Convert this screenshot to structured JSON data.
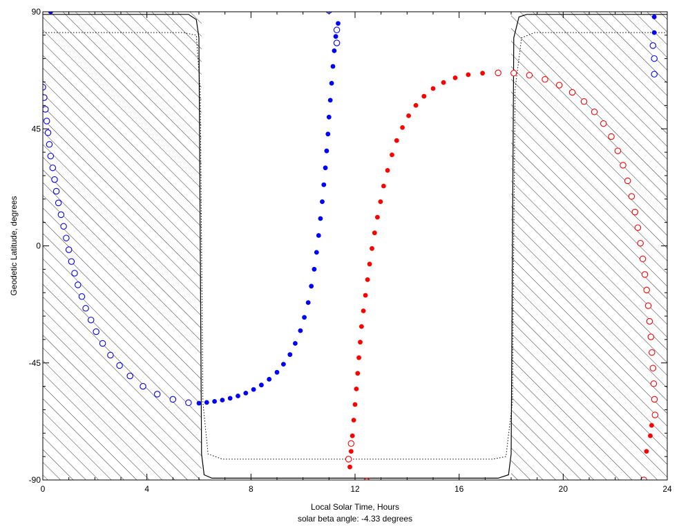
{
  "chart_data": {
    "type": "scatter",
    "title": "",
    "xlabel": "Local Solar Time, Hours",
    "subtitle": "solar beta angle:  -4.33 degrees",
    "ylabel": "Geodetic Latitude, degrees",
    "xlim": [
      0,
      24
    ],
    "ylim": [
      -90,
      90
    ],
    "x_ticks": [
      "0",
      "4",
      "8",
      "12",
      "16",
      "20",
      "24"
    ],
    "y_ticks": [
      "-90",
      "-45",
      "0",
      "45",
      "90"
    ],
    "grid": false,
    "colors": {
      "blue": "#0000ff",
      "red": "#ff0000",
      "axis": "#000000",
      "hatch": "#000000"
    },
    "night_regions": [
      {
        "x_start": 0,
        "x_end": 6.1,
        "label": "night (hatched)"
      },
      {
        "x_start": 18.0,
        "x_end": 24,
        "label": "night (hatched)"
      }
    ],
    "terminator_curves": {
      "solid": [
        [
          0,
          89
        ],
        [
          5.6,
          89
        ],
        [
          5.9,
          87
        ],
        [
          6.0,
          80
        ],
        [
          6.05,
          0
        ],
        [
          6.1,
          -80
        ],
        [
          6.2,
          -88
        ],
        [
          6.5,
          -89.3
        ],
        [
          17.5,
          -89.3
        ],
        [
          17.9,
          -88
        ],
        [
          18.0,
          -80
        ],
        [
          18.05,
          0
        ],
        [
          18.1,
          80
        ],
        [
          18.3,
          88
        ],
        [
          18.6,
          89
        ],
        [
          24,
          89
        ]
      ],
      "dotted": [
        [
          0,
          82
        ],
        [
          5.4,
          82
        ],
        [
          5.9,
          81
        ],
        [
          6.05,
          60
        ],
        [
          6.15,
          -60
        ],
        [
          6.35,
          -80
        ],
        [
          6.9,
          -82
        ],
        [
          17.3,
          -82
        ],
        [
          17.8,
          -81
        ],
        [
          18.05,
          -60
        ],
        [
          18.15,
          60
        ],
        [
          18.4,
          80
        ],
        [
          18.9,
          82
        ],
        [
          24,
          82
        ]
      ]
    },
    "series": [
      {
        "name": "blue-filled",
        "color": "#0000ff",
        "marker": "filled-circle",
        "points": [
          [
            0.3,
            90
          ],
          [
            6.0,
            -60.5
          ],
          [
            6.3,
            -60.2
          ],
          [
            6.6,
            -59.8
          ],
          [
            6.9,
            -59.3
          ],
          [
            7.2,
            -58.6
          ],
          [
            7.5,
            -57.7
          ],
          [
            7.8,
            -56.6
          ],
          [
            8.1,
            -55.2
          ],
          [
            8.4,
            -53.5
          ],
          [
            8.7,
            -51.3
          ],
          [
            9.0,
            -48.6
          ],
          [
            9.25,
            -45.5
          ],
          [
            9.5,
            -41.8
          ],
          [
            9.7,
            -37.5
          ],
          [
            9.9,
            -32.6
          ],
          [
            10.05,
            -27.5
          ],
          [
            10.2,
            -21.8
          ],
          [
            10.32,
            -15.5
          ],
          [
            10.43,
            -9.0
          ],
          [
            10.52,
            -2.5
          ],
          [
            10.6,
            4.0
          ],
          [
            10.67,
            10.5
          ],
          [
            10.74,
            17.0
          ],
          [
            10.8,
            23.5
          ],
          [
            10.86,
            30.0
          ],
          [
            10.91,
            36.5
          ],
          [
            10.96,
            43.0
          ],
          [
            11.0,
            49.5
          ],
          [
            11.05,
            56.0
          ],
          [
            11.1,
            62.5
          ],
          [
            11.15,
            69.0
          ],
          [
            11.2,
            75.0
          ],
          [
            11.26,
            80.5
          ],
          [
            11.35,
            85.5
          ],
          [
            23.5,
            88
          ],
          [
            23.5,
            82
          ]
        ]
      },
      {
        "name": "blue-open",
        "color": "#0000ff",
        "marker": "open-circle",
        "points": [
          [
            11.0,
            90.5
          ],
          [
            11.3,
            83.0
          ],
          [
            11.3,
            78.0
          ],
          [
            0.0,
            61.0
          ],
          [
            0.05,
            57.0
          ],
          [
            0.1,
            52.5
          ],
          [
            0.15,
            48.0
          ],
          [
            0.2,
            43.5
          ],
          [
            0.25,
            39.0
          ],
          [
            0.3,
            34.5
          ],
          [
            0.38,
            30.0
          ],
          [
            0.45,
            25.5
          ],
          [
            0.52,
            21.0
          ],
          [
            0.6,
            16.5
          ],
          [
            0.7,
            12.0
          ],
          [
            0.8,
            7.5
          ],
          [
            0.9,
            3.0
          ],
          [
            1.0,
            -1.5
          ],
          [
            1.1,
            -6.0
          ],
          [
            1.22,
            -10.5
          ],
          [
            1.35,
            -15.0
          ],
          [
            1.5,
            -19.5
          ],
          [
            1.65,
            -24.0
          ],
          [
            1.85,
            -28.5
          ],
          [
            2.05,
            -33.0
          ],
          [
            2.3,
            -37.5
          ],
          [
            2.6,
            -42.0
          ],
          [
            2.95,
            -46.0
          ],
          [
            3.35,
            -50.0
          ],
          [
            3.85,
            -54.0
          ],
          [
            4.4,
            -57.0
          ],
          [
            5.0,
            -59.0
          ],
          [
            5.6,
            -60.3
          ],
          [
            23.45,
            77.0
          ],
          [
            23.5,
            72.0
          ],
          [
            23.5,
            66.0
          ]
        ]
      },
      {
        "name": "red-filled",
        "color": "#ff0000",
        "marker": "filled-circle",
        "points": [
          [
            11.8,
            -85.0
          ],
          [
            11.85,
            -79.0
          ],
          [
            11.9,
            -73.0
          ],
          [
            11.95,
            -67.0
          ],
          [
            12.0,
            -61.0
          ],
          [
            12.05,
            -55.0
          ],
          [
            12.1,
            -49.0
          ],
          [
            12.15,
            -43.0
          ],
          [
            12.2,
            -37.0
          ],
          [
            12.25,
            -31.0
          ],
          [
            12.32,
            -25.0
          ],
          [
            12.4,
            -19.0
          ],
          [
            12.48,
            -13.0
          ],
          [
            12.56,
            -7.0
          ],
          [
            12.65,
            -1.0
          ],
          [
            12.75,
            5.0
          ],
          [
            12.86,
            11.0
          ],
          [
            12.98,
            17.0
          ],
          [
            13.1,
            23.0
          ],
          [
            13.25,
            29.0
          ],
          [
            13.42,
            35.0
          ],
          [
            13.6,
            40.5
          ],
          [
            13.82,
            45.5
          ],
          [
            14.06,
            50.0
          ],
          [
            14.34,
            54.0
          ],
          [
            14.65,
            57.5
          ],
          [
            15.0,
            60.5
          ],
          [
            15.4,
            62.8
          ],
          [
            15.85,
            64.6
          ],
          [
            16.35,
            65.8
          ],
          [
            16.9,
            66.4
          ],
          [
            23.2,
            -79.0
          ],
          [
            23.35,
            -73.0
          ],
          [
            23.4,
            -69.0
          ]
        ]
      },
      {
        "name": "red-open",
        "color": "#ff0000",
        "marker": "open-circle",
        "points": [
          [
            11.75,
            -82.0
          ],
          [
            11.85,
            -76.0
          ],
          [
            12.45,
            -90.5
          ],
          [
            17.5,
            66.5
          ],
          [
            18.1,
            66.4
          ],
          [
            18.7,
            65.6
          ],
          [
            19.3,
            64.0
          ],
          [
            19.85,
            61.8
          ],
          [
            20.35,
            59.0
          ],
          [
            20.8,
            55.5
          ],
          [
            21.2,
            51.5
          ],
          [
            21.55,
            47.0
          ],
          [
            21.85,
            42.0
          ],
          [
            22.1,
            36.5
          ],
          [
            22.3,
            31.0
          ],
          [
            22.48,
            25.0
          ],
          [
            22.63,
            19.0
          ],
          [
            22.76,
            13.0
          ],
          [
            22.87,
            7.0
          ],
          [
            22.97,
            1.0
          ],
          [
            23.06,
            -5.0
          ],
          [
            23.14,
            -11.0
          ],
          [
            23.21,
            -17.0
          ],
          [
            23.27,
            -23.0
          ],
          [
            23.32,
            -29.0
          ],
          [
            23.37,
            -35.0
          ],
          [
            23.41,
            -41.0
          ],
          [
            23.45,
            -47.0
          ],
          [
            23.48,
            -53.0
          ],
          [
            23.51,
            -59.0
          ],
          [
            23.53,
            -65.0
          ],
          [
            23.1,
            -90.0
          ]
        ]
      }
    ]
  }
}
